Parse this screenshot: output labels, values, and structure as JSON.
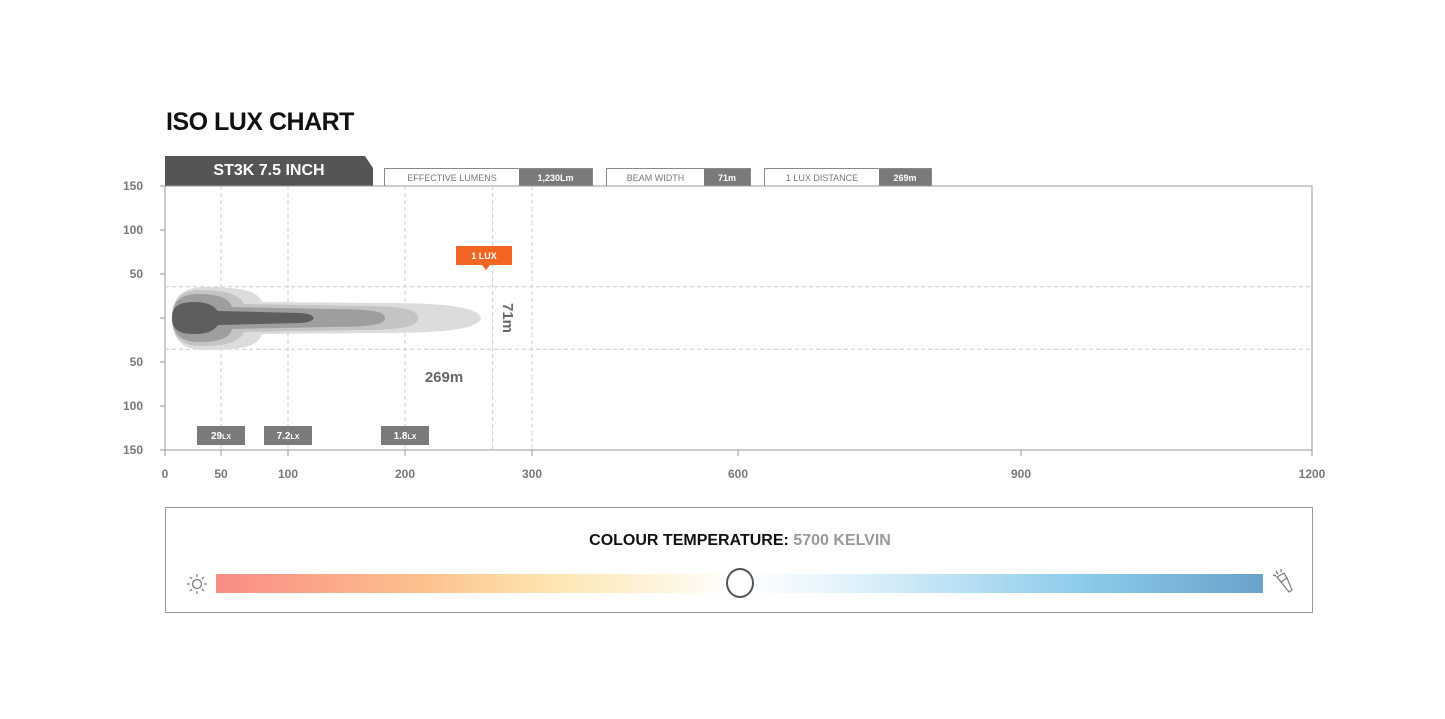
{
  "title": "ISO LUX CHART",
  "model": "ST3K 7.5 INCH",
  "specs": [
    {
      "label": "EFFECTIVE LUMENS",
      "value": "1,230Lm"
    },
    {
      "label": "BEAM WIDTH",
      "value": "71m"
    },
    {
      "label": "1 LUX DISTANCE",
      "value": "269m"
    }
  ],
  "chart_data": {
    "type": "area",
    "title": "ISO LUX CHART",
    "x_ticks": [
      0,
      50,
      100,
      200,
      300,
      600,
      900,
      1200
    ],
    "y_ticks": [
      "150",
      "100",
      "50",
      "",
      "50",
      "100",
      "150"
    ],
    "y_tick_values": [
      150,
      100,
      50,
      0,
      -50,
      -100,
      -150
    ],
    "xlim": [
      0,
      1200
    ],
    "ylim": [
      -150,
      150
    ],
    "x_scale": "piecewise (non-linear)",
    "gridlines_x": [
      50,
      100,
      200,
      269,
      300
    ],
    "gridlines_y": [
      35.5,
      -35.5
    ],
    "lux_contours": [
      {
        "label": "29",
        "unit": "LX",
        "distance": 50
      },
      {
        "label": "7.2",
        "unit": "LX",
        "distance": 100
      },
      {
        "label": "1.8",
        "unit": "LX",
        "distance": 200
      },
      {
        "label": "1 LUX",
        "distance": 269
      }
    ],
    "annotations": {
      "distance": "269m",
      "width": "71m"
    },
    "colors": {
      "marker": "#f26522",
      "contour_dark": "#5a5a5a"
    }
  },
  "colour_temp": {
    "label": "COLOUR TEMPERATURE:",
    "value": "5700 KELVIN",
    "position_fraction": 0.5,
    "left_icon": "sun-icon",
    "right_icon": "flashlight-icon"
  }
}
